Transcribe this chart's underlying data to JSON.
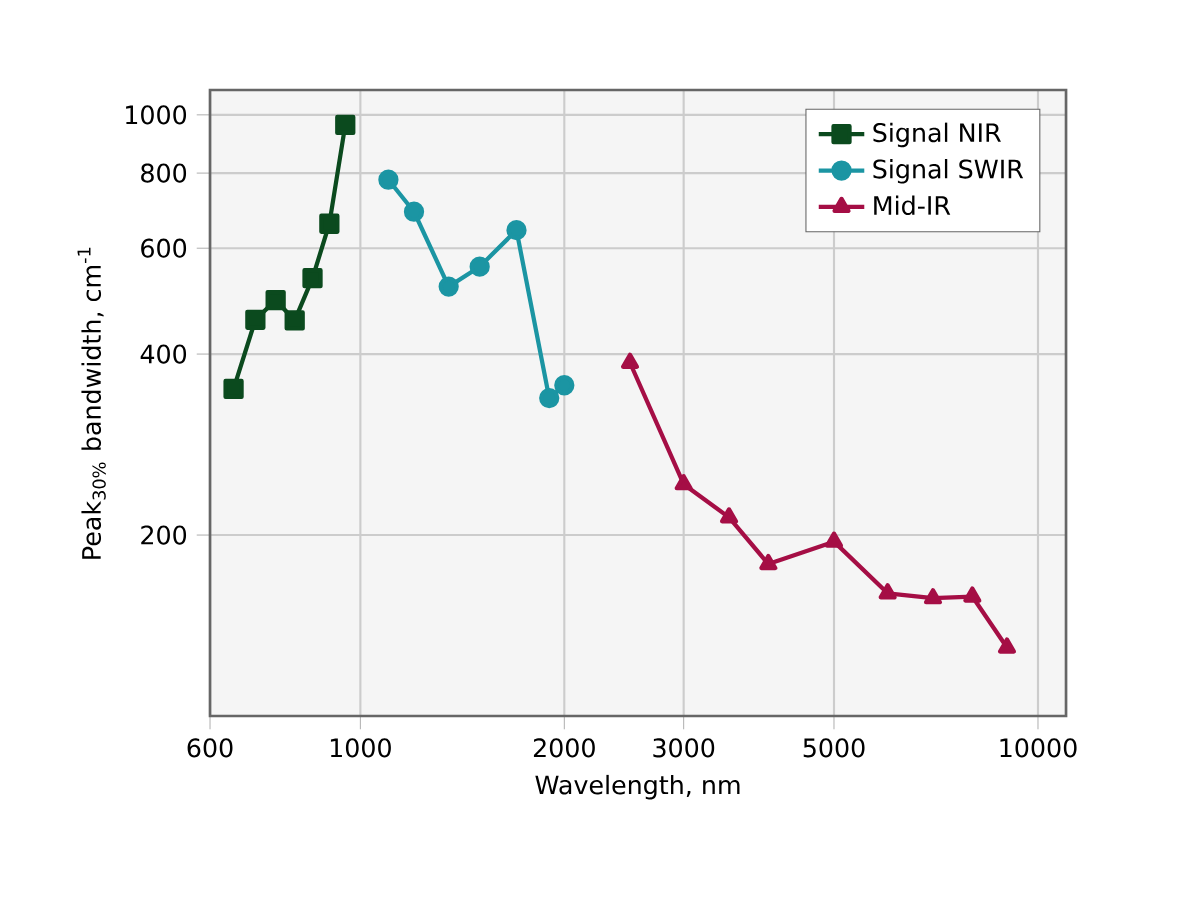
{
  "chart_data": {
    "type": "line",
    "xlabel": "Wavelength, nm",
    "ylabel": "Peak$_{30%}$ bandwidth, cm$^{-1}$",
    "log": "xy",
    "grid": true,
    "legend": "top right",
    "line_style": "solid",
    "xlim": [
      600,
      11000
    ],
    "ylim": [
      100,
      1100
    ],
    "xticks": [
      600,
      1000,
      2000,
      3000,
      5000,
      10000
    ],
    "yticks": [
      200,
      400,
      600,
      800,
      1000
    ],
    "series": [
      {
        "name": "Signal NIR",
        "color": "#0b4a1e",
        "marker": "square",
        "x": [
          650,
          700,
          750,
          800,
          850,
          900,
          950
        ],
        "values": [
          350,
          456,
          492,
          455,
          535,
          659,
          962
        ]
      },
      {
        "name": "Signal SWIR",
        "color": "#1b95a3",
        "marker": "circle",
        "x": [
          1100,
          1200,
          1350,
          1500,
          1700,
          1900,
          2000
        ],
        "values": [
          780,
          690,
          518,
          559,
          643,
          338,
          355
        ]
      },
      {
        "name": "Mid-IR",
        "color": "#a50e45",
        "marker": "triangle",
        "x": [
          2500,
          3000,
          3500,
          4000,
          5000,
          6000,
          7000,
          8000,
          9000
        ],
        "values": [
          387,
          243,
          214,
          179,
          195,
          160,
          157,
          158,
          130
        ]
      }
    ]
  }
}
